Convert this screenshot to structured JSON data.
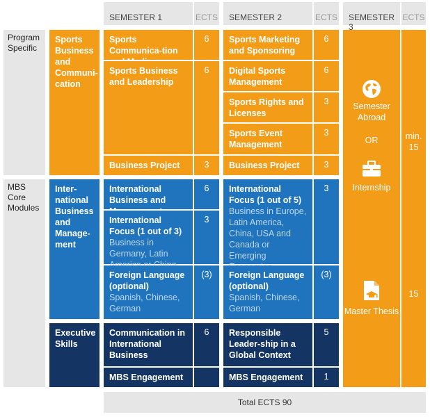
{
  "headers": {
    "sem1": "SEMESTER 1",
    "sem2": "SEMESTER 2",
    "sem3": "SEMESTER 3",
    "ects": "ECTS"
  },
  "rows": {
    "program": "Program Specific",
    "core": "MBS Core Modules"
  },
  "categories": {
    "sports": "Sports Business and Communi-cation",
    "intl": "Inter-national Business and Manage-ment",
    "exec": "Executive Skills"
  },
  "sem1": {
    "m1": {
      "title": "Sports Communica-tion and Media",
      "ects": "6"
    },
    "m2": {
      "title": "Sports Business and Leadership",
      "ects": "6"
    },
    "m3": {
      "title": "Business Project",
      "ects": "3"
    },
    "m4": {
      "title": "International Business and Management",
      "ects": "6"
    },
    "m5": {
      "title": "International Focus (1 out of 3)",
      "sub": "Business in Germany, Latin America or China",
      "ects": "3"
    },
    "m6": {
      "title": "Foreign Language (optional)",
      "sub": "Spanish, Chinese, German",
      "ects": "(3)"
    },
    "m7": {
      "title": "Communication in International Business",
      "ects": "6"
    },
    "m8": {
      "title": "MBS Engagement",
      "ects": ""
    }
  },
  "sem2": {
    "m1": {
      "title": "Sports Marketing and Sponsoring",
      "ects": "6"
    },
    "m2": {
      "title": "Digital Sports Management",
      "ects": "6"
    },
    "m3": {
      "title": "Sports Rights and Licenses",
      "ects": "3"
    },
    "m4": {
      "title": "Sports Event Management",
      "ects": "3"
    },
    "m5": {
      "title": "Business Project",
      "ects": "3"
    },
    "m6": {
      "title": "International Focus (1 out of 5)",
      "sub": "Business in Europe, Latin America, China, USA and Canada or Emerging Economies",
      "ects": "3"
    },
    "m7": {
      "title": "Foreign Language (optional)",
      "sub": "Spanish, Chinese, German",
      "ects": "(3)"
    },
    "m8": {
      "title": "Responsible Leader-ship in a Global Context",
      "ects": "5"
    },
    "m9": {
      "title": "MBS Engagement",
      "ects": "1"
    }
  },
  "sem3": {
    "abroad": "Semester Abroad",
    "or": "OR",
    "internship": "Internship",
    "thesis": "Master Thesis",
    "ects_top": "min. 15",
    "ects_bottom": "15"
  },
  "total": "Total ECTS 90"
}
